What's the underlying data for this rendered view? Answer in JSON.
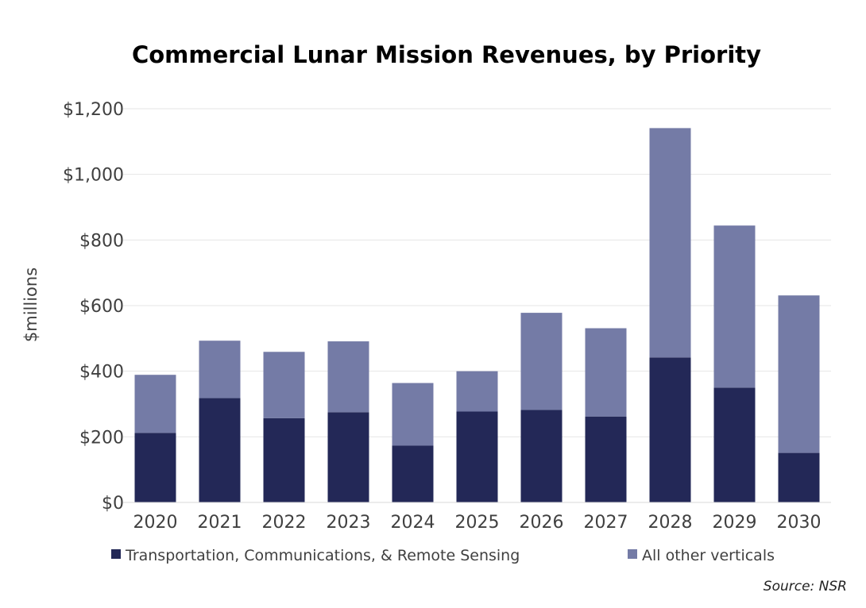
{
  "chart_data": {
    "type": "bar",
    "stacked": true,
    "title": "Commercial Lunar Mission Revenues, by Priority",
    "ylabel": "$millions",
    "xlabel": "",
    "categories": [
      "2020",
      "2021",
      "2022",
      "2023",
      "2024",
      "2025",
      "2026",
      "2027",
      "2028",
      "2029",
      "2030"
    ],
    "series": [
      {
        "name": "Transportation, Communications, & Remote Sensing",
        "color": "#232857",
        "values": [
          212,
          318,
          257,
          275,
          173,
          277,
          282,
          262,
          442,
          350,
          151
        ]
      },
      {
        "name": "All other verticals",
        "color": "#747ba6",
        "values": [
          177,
          175,
          202,
          216,
          191,
          123,
          296,
          269,
          699,
          494,
          480
        ]
      }
    ],
    "ylim": [
      0,
      1200
    ],
    "yticks": [
      0,
      200,
      400,
      600,
      800,
      1000,
      1200
    ],
    "ytick_labels": [
      "$0",
      "$200",
      "$400",
      "$600",
      "$800",
      "$1,000",
      "$1,200"
    ],
    "grid": true,
    "legend_position": "bottom"
  },
  "source": "Source: NSR"
}
